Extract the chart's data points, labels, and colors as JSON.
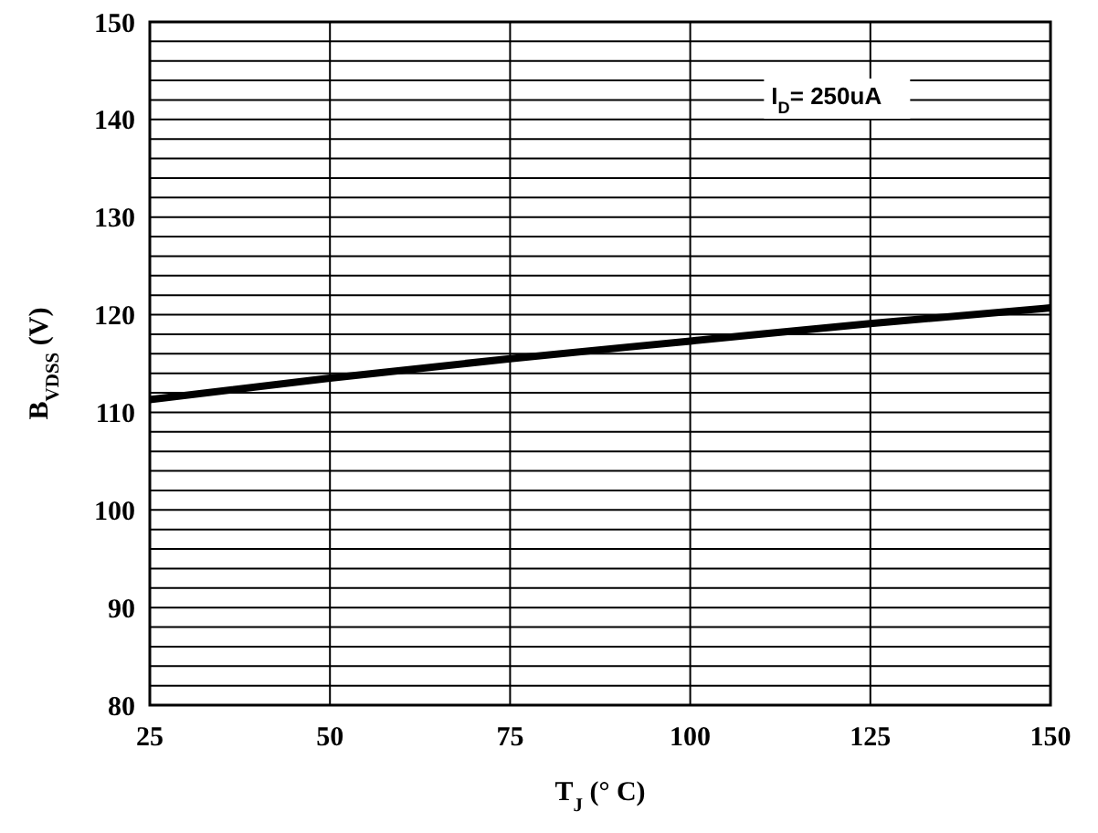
{
  "chart_data": {
    "type": "line",
    "xlabel": "T$_{J}$ (°  C)",
    "ylabel": "B$_{VDSS}$ (V)",
    "annotations": [
      "I$_{D}$= 250uA"
    ],
    "x": [
      25,
      50,
      75,
      100,
      125,
      150
    ],
    "series": [
      {
        "color": "#000000",
        "values": [
          111.3,
          113.5,
          115.5,
          117.3,
          119.1,
          120.7
        ]
      }
    ],
    "xlim": [
      25,
      150
    ],
    "xticks": [
      25,
      50,
      75,
      100,
      125,
      150
    ],
    "ylim": [
      80,
      150
    ],
    "yticks": [
      80,
      {
        "value": 82,
        "label": null
      },
      {
        "value": 84,
        "label": null
      },
      {
        "value": 86,
        "label": null
      },
      {
        "value": 88,
        "label": null
      },
      90,
      {
        "value": 92,
        "label": null
      },
      {
        "value": 94,
        "label": null
      },
      {
        "value": 96,
        "label": null
      },
      {
        "value": 98,
        "label": null
      },
      100,
      {
        "value": 102,
        "label": null
      },
      {
        "value": 104,
        "label": null
      },
      {
        "value": 106,
        "label": null
      },
      {
        "value": 108,
        "label": null
      },
      110,
      {
        "value": 112,
        "label": null
      },
      {
        "value": 114,
        "label": null
      },
      {
        "value": 116,
        "label": null
      },
      {
        "value": 118,
        "label": null
      },
      120,
      {
        "value": 122,
        "label": null
      },
      {
        "value": 124,
        "label": null
      },
      {
        "value": 126,
        "label": null
      },
      {
        "value": 128,
        "label": null
      },
      130,
      {
        "value": 132,
        "label": null
      },
      {
        "value": 134,
        "label": null
      },
      {
        "value": 136,
        "label": null
      },
      {
        "value": 138,
        "label": null
      },
      140,
      {
        "value": 142,
        "label": null
      },
      {
        "value": 144,
        "label": null
      },
      {
        "value": 146,
        "label": null
      },
      {
        "value": 148,
        "label": null
      },
      150
    ],
    "grid": true,
    "line_style": "solid",
    "marker": "none"
  }
}
